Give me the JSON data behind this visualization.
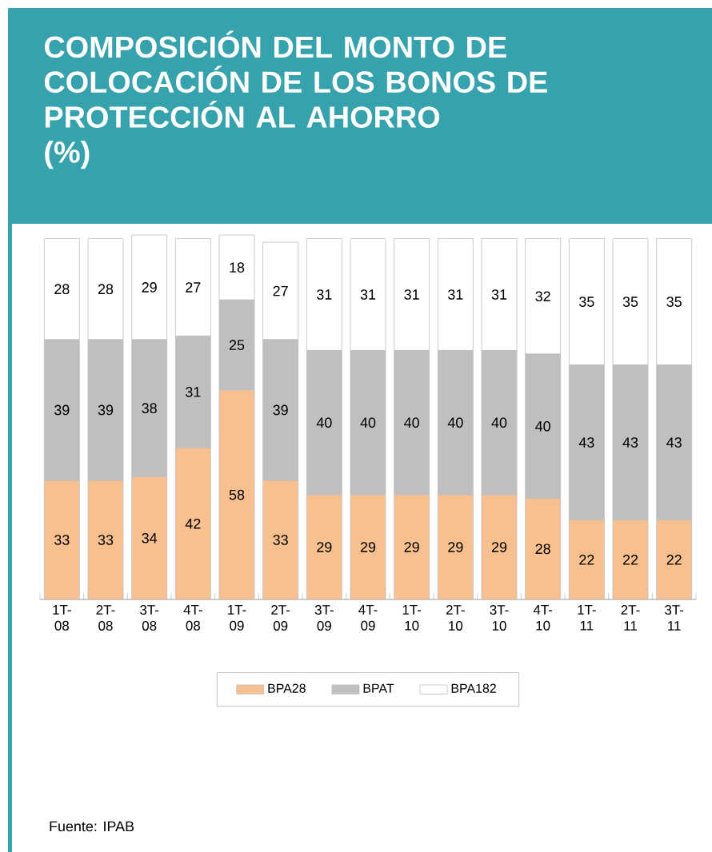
{
  "chart_data": {
    "type": "bar",
    "stacked": true,
    "title": "COMPOSICIÓN DEL MONTO DE COLOCACIÓN DE LOS BONOS DE PROTECCIÓN AL AHORRO",
    "subtitle": "(%)",
    "categories": [
      "1T-08",
      "2T-08",
      "3T-08",
      "4T-08",
      "1T-09",
      "2T-09",
      "3T-09",
      "4T-09",
      "1T-10",
      "2T-10",
      "3T-10",
      "4T-10",
      "1T-11",
      "2T-11",
      "3T-11"
    ],
    "series": [
      {
        "name": "BPA28",
        "color": "#f8c08f",
        "values": [
          33,
          33,
          34,
          42,
          58,
          33,
          29,
          29,
          29,
          29,
          29,
          28,
          22,
          22,
          22
        ]
      },
      {
        "name": "BPAT",
        "color": "#bfbfbf",
        "values": [
          39,
          39,
          38,
          31,
          25,
          39,
          40,
          40,
          40,
          40,
          40,
          40,
          43,
          43,
          43
        ]
      },
      {
        "name": "BPA182",
        "color": "#ffffff",
        "values": [
          28,
          28,
          29,
          27,
          18,
          27,
          31,
          31,
          31,
          31,
          31,
          32,
          35,
          35,
          35
        ]
      }
    ],
    "data_labels": true,
    "legend": "bottom",
    "annotations": [
      "Fuente: IPAB"
    ]
  }
}
